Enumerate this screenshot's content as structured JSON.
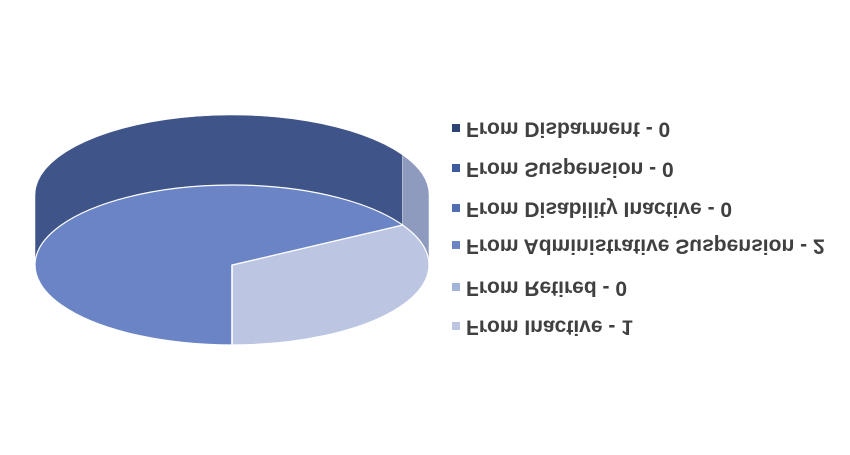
{
  "chart_data": {
    "type": "pie3d",
    "categories": [
      "From Inactive - 1",
      "From Retired - 0",
      "From Administrative Suspension - 2",
      "From Disability Inactive - 0",
      "From Suspension - 0",
      "From Disbarment - 0"
    ],
    "values": [
      1,
      0,
      2,
      0,
      0,
      0
    ],
    "colors": [
      "#bcc6e2",
      "#a3b2da",
      "#6a84c6",
      "#4f6db3",
      "#3d5ca0",
      "#2b4275"
    ],
    "side_colors": [
      "#8e9bbf",
      "#7b89b3",
      "#3f5488",
      "#334a80",
      "#2a4070",
      "#1e2f55"
    ],
    "legend": "right",
    "flipped": true
  }
}
